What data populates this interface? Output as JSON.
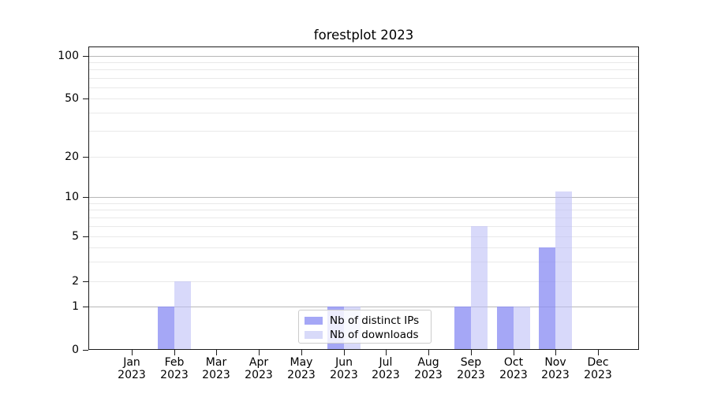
{
  "chart_data": {
    "type": "bar",
    "title": "forestplot 2023",
    "categories": [
      "Jan 2023",
      "Feb 2023",
      "Mar 2023",
      "Apr 2023",
      "May 2023",
      "Jun 2023",
      "Jul 2023",
      "Aug 2023",
      "Sep 2023",
      "Oct 2023",
      "Nov 2023",
      "Dec 2023"
    ],
    "series": [
      {
        "name": "Nb of distinct IPs",
        "swatch_color": "#a5a7f6",
        "bar_fill": "rgba(140,142,243,0.78)",
        "values": [
          0,
          1,
          0,
          0,
          0,
          1,
          0,
          0,
          1,
          1,
          4,
          0
        ]
      },
      {
        "name": "Nb of downloads",
        "swatch_color": "#d8daf9",
        "bar_fill": "rgba(186,189,246,0.57)",
        "values": [
          0,
          2,
          0,
          0,
          0,
          1,
          0,
          0,
          6,
          1,
          11,
          0
        ]
      }
    ],
    "xlabel": "",
    "ylabel": "",
    "yscale": "symlog",
    "yticks": [
      0,
      1,
      2,
      5,
      10,
      20,
      50,
      100
    ],
    "minor_grid_values": [
      2,
      3,
      4,
      5,
      6,
      7,
      8,
      9,
      20,
      30,
      40,
      50,
      60,
      70,
      80,
      90
    ],
    "major_grid_values": [
      1,
      10,
      100
    ],
    "ylim": [
      0,
      115
    ],
    "grid": "horizontal",
    "legend_position": "lower center",
    "colors": {
      "major_gridline": "#b7b7b7",
      "minor_gridline": "#e9e9e9",
      "axis": "#1c1c1c",
      "legend_border": "#cccccc"
    }
  }
}
